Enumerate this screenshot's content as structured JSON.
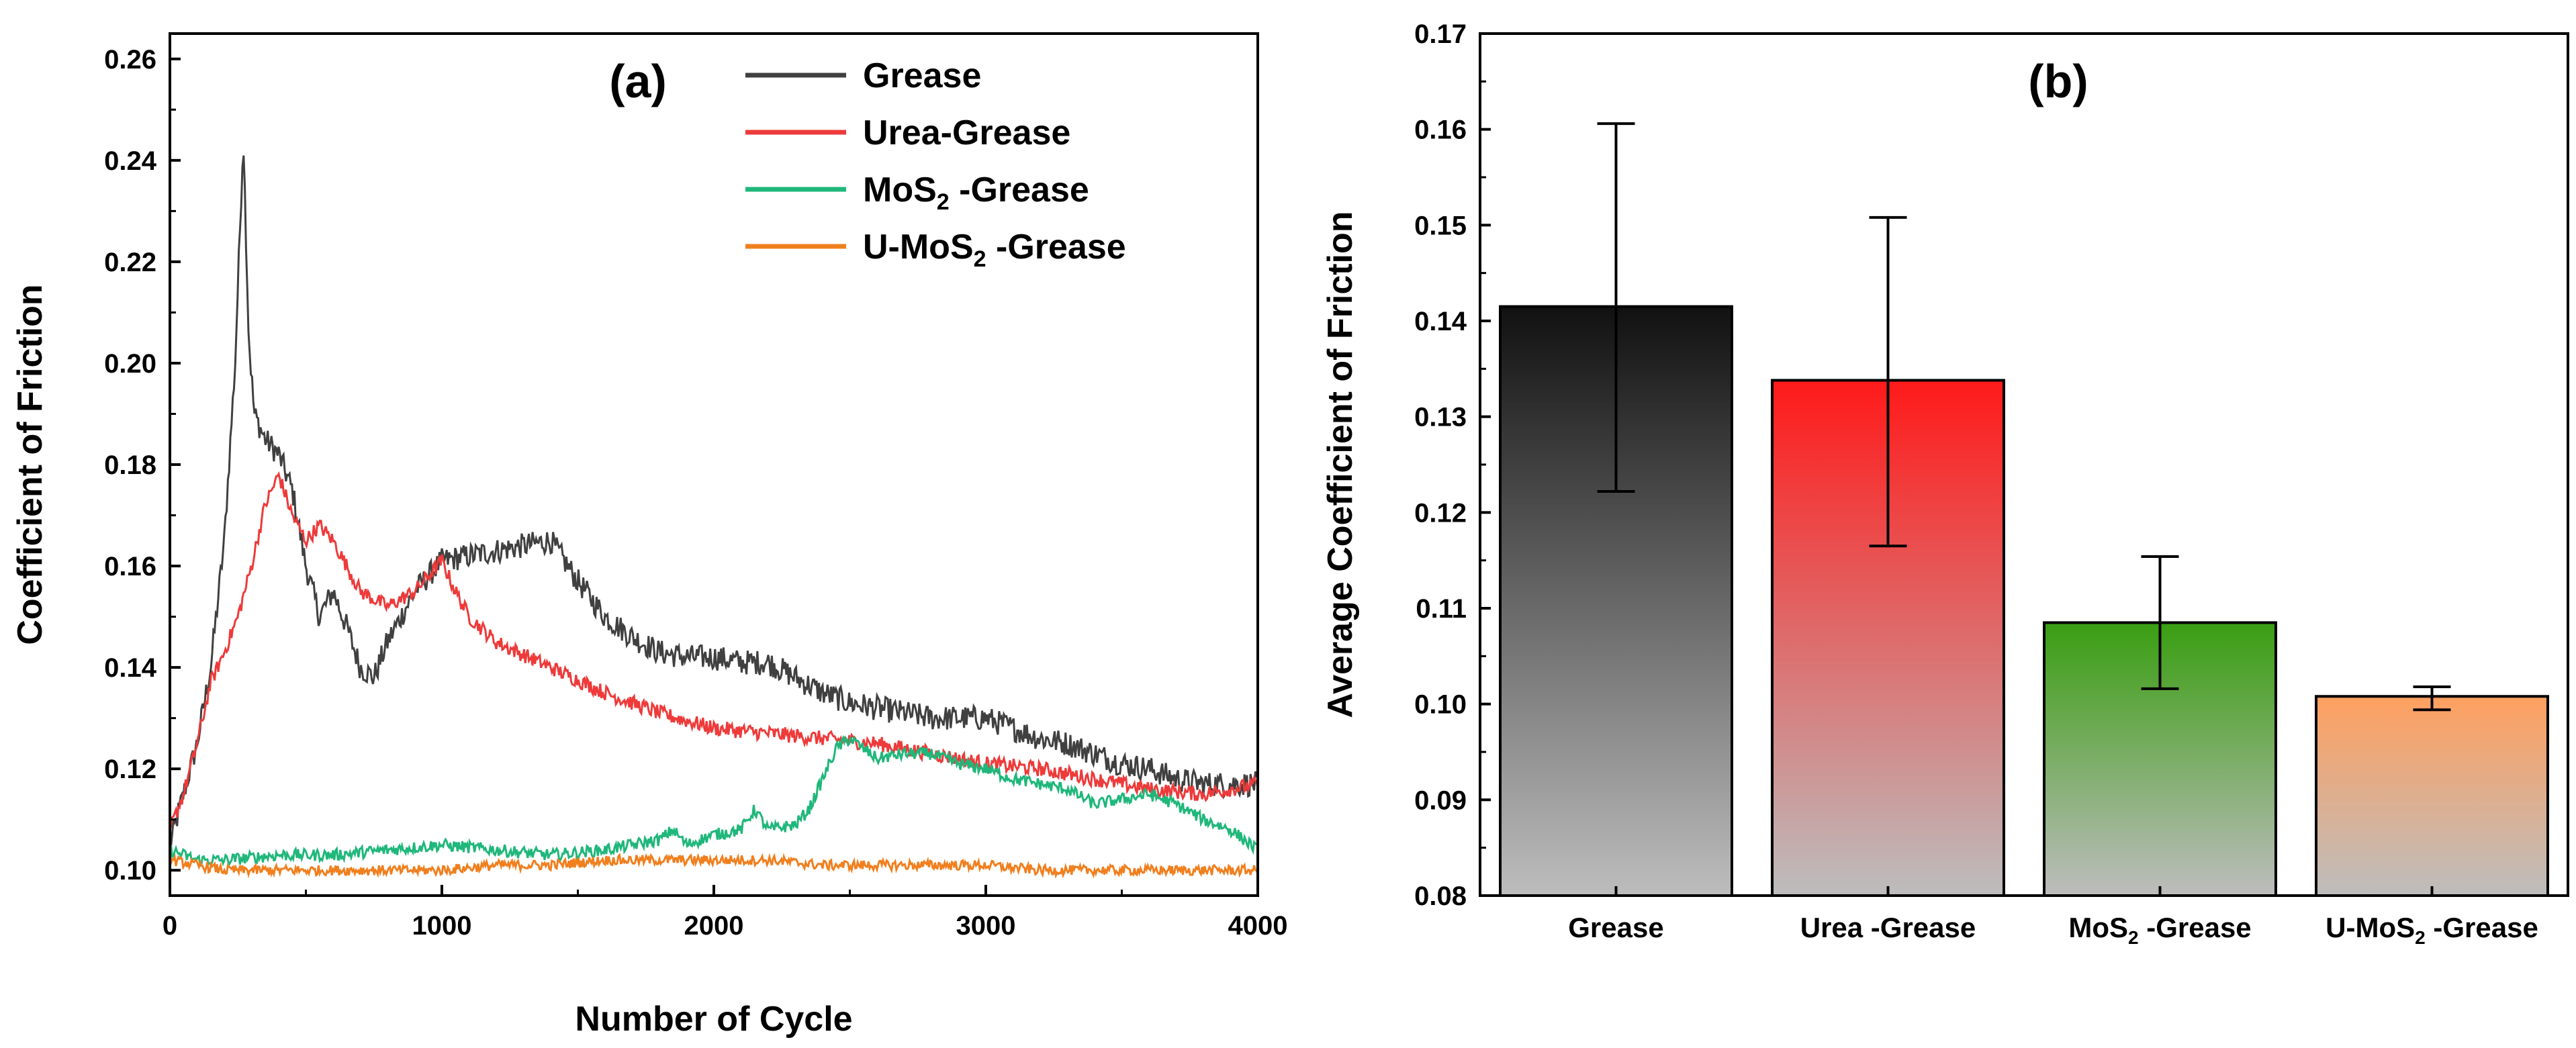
{
  "chart_data": [
    {
      "type": "line",
      "panel": "(a)",
      "xlabel": "Number of Cycle",
      "ylabel": "Coefficient of Friction",
      "xlim": [
        0,
        4000
      ],
      "ylim": [
        0.095,
        0.265
      ],
      "xticks": [
        "0",
        "1000",
        "2000",
        "3000",
        "4000"
      ],
      "xtick_values": [
        0,
        1000,
        2000,
        3000,
        4000
      ],
      "yticks": [
        "0.10",
        "0.12",
        "0.14",
        "0.16",
        "0.18",
        "0.20",
        "0.22",
        "0.24",
        "0.26"
      ],
      "ytick_values": [
        0.1,
        0.12,
        0.14,
        0.16,
        0.18,
        0.2,
        0.22,
        0.24,
        0.26
      ],
      "legend_position": "top-right",
      "series": [
        {
          "name": "Grease",
          "legend_main": "Grease",
          "legend_sub": "",
          "legend_tail": "",
          "color": "#404040",
          "noise": 0.0025,
          "x": [
            0,
            50,
            100,
            150,
            200,
            240,
            270,
            290,
            310,
            350,
            400,
            450,
            500,
            550,
            600,
            650,
            700,
            750,
            800,
            850,
            900,
            950,
            1000,
            1100,
            1200,
            1300,
            1400,
            1500,
            1600,
            1700,
            1800,
            1900,
            2000,
            2100,
            2200,
            2300,
            2400,
            2500,
            2600,
            2700,
            2800,
            2900,
            3000,
            3100,
            3200,
            3300,
            3400,
            3500,
            3600,
            3700,
            3800,
            3900,
            4000
          ],
          "y": [
            0.105,
            0.115,
            0.125,
            0.14,
            0.165,
            0.2,
            0.245,
            0.205,
            0.19,
            0.185,
            0.182,
            0.175,
            0.16,
            0.15,
            0.155,
            0.148,
            0.14,
            0.138,
            0.145,
            0.15,
            0.155,
            0.158,
            0.161,
            0.162,
            0.163,
            0.164,
            0.165,
            0.157,
            0.15,
            0.146,
            0.143,
            0.142,
            0.142,
            0.141,
            0.141,
            0.138,
            0.135,
            0.133,
            0.132,
            0.131,
            0.13,
            0.13,
            0.13,
            0.128,
            0.126,
            0.125,
            0.123,
            0.121,
            0.12,
            0.118,
            0.117,
            0.117,
            0.117
          ]
        },
        {
          "name": "Urea-Grease",
          "legend_main": "Urea-Grease",
          "legend_sub": "",
          "legend_tail": "",
          "color": "#ee3a3a",
          "noise": 0.0015,
          "x": [
            0,
            50,
            100,
            150,
            200,
            250,
            300,
            350,
            400,
            450,
            500,
            550,
            600,
            700,
            800,
            900,
            950,
            1000,
            1050,
            1100,
            1200,
            1400,
            1600,
            1800,
            2000,
            2200,
            2400,
            2600,
            2800,
            3000,
            3200,
            3400,
            3600,
            3800,
            4000
          ],
          "y": [
            0.108,
            0.115,
            0.125,
            0.137,
            0.143,
            0.15,
            0.16,
            0.172,
            0.178,
            0.17,
            0.165,
            0.168,
            0.165,
            0.155,
            0.152,
            0.155,
            0.158,
            0.161,
            0.155,
            0.15,
            0.145,
            0.14,
            0.135,
            0.131,
            0.128,
            0.127,
            0.126,
            0.125,
            0.123,
            0.121,
            0.12,
            0.118,
            0.116,
            0.115,
            0.117
          ]
        },
        {
          "name": "MoS2 -Grease",
          "legend_main": "MoS",
          "legend_sub": "2",
          "legend_tail": " -Grease",
          "color": "#1fb77a",
          "noise": 0.0012,
          "x": [
            0,
            50,
            100,
            200,
            400,
            600,
            800,
            1000,
            1200,
            1400,
            1600,
            1800,
            1850,
            1900,
            2000,
            2100,
            2150,
            2200,
            2300,
            2350,
            2400,
            2450,
            2500,
            2550,
            2600,
            2700,
            2800,
            2900,
            3000,
            3100,
            3200,
            3300,
            3400,
            3500,
            3600,
            3700,
            3800,
            3900,
            4000
          ],
          "y": [
            0.104,
            0.103,
            0.102,
            0.102,
            0.103,
            0.103,
            0.104,
            0.105,
            0.104,
            0.103,
            0.104,
            0.106,
            0.108,
            0.105,
            0.107,
            0.108,
            0.112,
            0.108,
            0.109,
            0.112,
            0.118,
            0.124,
            0.126,
            0.124,
            0.122,
            0.123,
            0.123,
            0.121,
            0.12,
            0.118,
            0.117,
            0.116,
            0.113,
            0.114,
            0.115,
            0.113,
            0.11,
            0.108,
            0.104
          ]
        },
        {
          "name": "U-MoS2 -Grease",
          "legend_main": "U-MoS",
          "legend_sub": "2",
          "legend_tail": " -Grease",
          "color": "#f07f1e",
          "noise": 0.001,
          "x": [
            0,
            100,
            200,
            400,
            600,
            800,
            1000,
            1200,
            1400,
            1600,
            1800,
            2000,
            2200,
            2400,
            2600,
            2800,
            3000,
            3200,
            3400,
            3600,
            3800,
            4000
          ],
          "y": [
            0.102,
            0.101,
            0.1,
            0.1,
            0.1,
            0.1,
            0.1,
            0.101,
            0.101,
            0.102,
            0.102,
            0.102,
            0.102,
            0.101,
            0.101,
            0.101,
            0.101,
            0.1,
            0.1,
            0.1,
            0.1,
            0.1
          ]
        }
      ]
    },
    {
      "type": "bar",
      "panel": "(b)",
      "xlabel": "",
      "ylabel": "Average Coefficient of Friction",
      "ylim": [
        0.08,
        0.17
      ],
      "yticks": [
        "0.08",
        "0.09",
        "0.10",
        "0.11",
        "0.12",
        "0.13",
        "0.14",
        "0.15",
        "0.16",
        "0.17"
      ],
      "ytick_values": [
        0.08,
        0.09,
        0.1,
        0.11,
        0.12,
        0.13,
        0.14,
        0.15,
        0.16,
        0.17
      ],
      "categories": [
        "Grease",
        "Urea -Grease",
        "MoS2 -Grease",
        "U-MoS2 -Grease"
      ],
      "category_labels": [
        {
          "main": "Grease",
          "sub": "",
          "tail": ""
        },
        {
          "main": "Urea -Grease",
          "sub": "",
          "tail": ""
        },
        {
          "main": "MoS",
          "sub": "2",
          "tail": " -Grease"
        },
        {
          "main": "U-MoS",
          "sub": "2",
          "tail": " -Grease"
        }
      ],
      "values": [
        0.1415,
        0.1338,
        0.1085,
        0.1008
      ],
      "error_low": [
        0.1222,
        0.1165,
        0.1016,
        0.0994
      ],
      "error_high": [
        0.1606,
        0.1508,
        0.1154,
        0.1018
      ],
      "colors_top": [
        "#111111",
        "#ff1a1a",
        "#3a9e12",
        "#ffa060"
      ],
      "colors_bottom": [
        "#bdbdbd",
        "#bdbdbd",
        "#bdbdbd",
        "#bdbdbd"
      ]
    }
  ]
}
